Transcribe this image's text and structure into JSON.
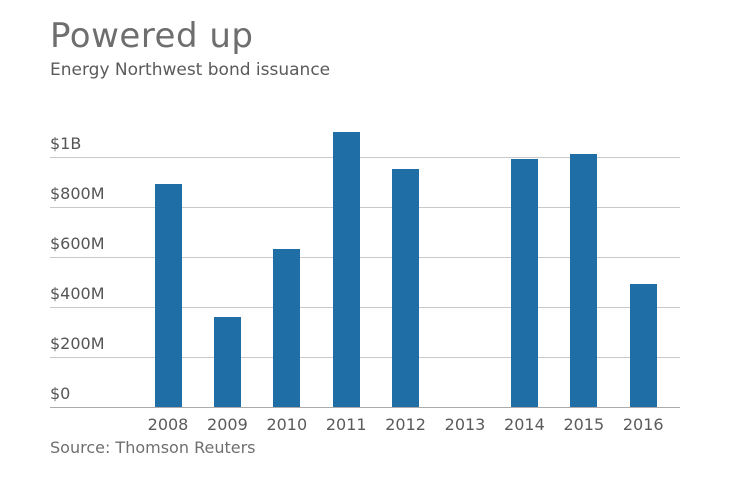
{
  "header": {
    "title": "Powered up",
    "subtitle": "Energy Northwest bond issuance"
  },
  "source": {
    "label": "Source: Thomson Reuters"
  },
  "colors": {
    "bar": "#1f6ea6",
    "gridline": "#c9c9c9",
    "baseline": "#ababab",
    "title_text": "#6e6e6e",
    "body_text": "#5a5a5a"
  },
  "chart_data": {
    "type": "bar",
    "title": "Powered up",
    "subtitle": "Energy Northwest bond issuance",
    "source": "Source: Thomson Reuters",
    "categories": [
      "2008",
      "2009",
      "2010",
      "2011",
      "2012",
      "2013",
      "2014",
      "2015",
      "2016"
    ],
    "values": [
      890,
      360,
      630,
      1100,
      950,
      0,
      990,
      1010,
      490
    ],
    "values_unit": "millions USD",
    "xlabel": "",
    "ylabel": "",
    "ylim": [
      0,
      1130
    ],
    "grid": true,
    "legend": false,
    "y_ticks": [
      {
        "value": 0,
        "label": "$0"
      },
      {
        "value": 200,
        "label": "$200M"
      },
      {
        "value": 400,
        "label": "$400M"
      },
      {
        "value": 600,
        "label": "$600M"
      },
      {
        "value": 800,
        "label": "$800M"
      },
      {
        "value": 1000,
        "label": "$1B"
      }
    ]
  }
}
